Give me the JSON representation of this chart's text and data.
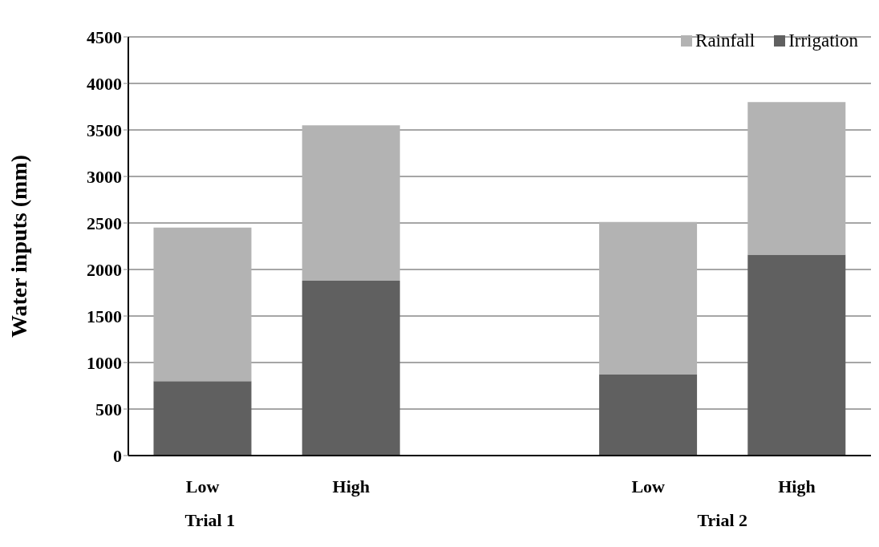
{
  "chart_data": {
    "type": "bar",
    "stacked": true,
    "ylabel": "Water inputs (mm)",
    "categories": [
      "Low",
      "High",
      null,
      "Low",
      "High"
    ],
    "series": [
      {
        "name": "Irrigation",
        "color": "#606060",
        "values": [
          800,
          1880,
          null,
          870,
          2160
        ]
      },
      {
        "name": "Rainfall",
        "color": "#b3b3b3",
        "values": [
          1650,
          1670,
          null,
          1640,
          1640
        ]
      }
    ],
    "ylim": [
      0,
      4500
    ],
    "yticks": [
      0,
      500,
      1000,
      1500,
      2000,
      2500,
      3000,
      3500,
      4000,
      4500
    ],
    "grid": "y",
    "legend": "top right",
    "annotations": [
      "Trial 1",
      "Trial 2"
    ]
  }
}
